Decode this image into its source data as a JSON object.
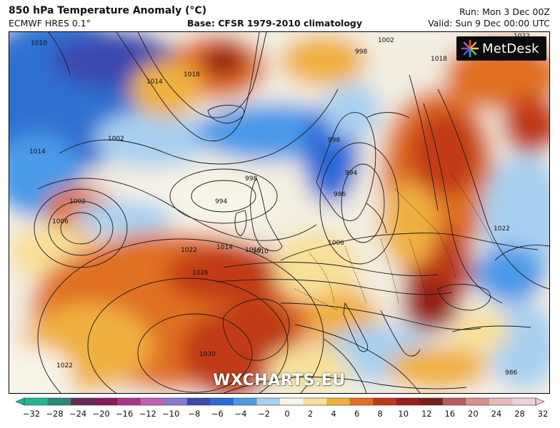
{
  "header": {
    "title": "850 hPa Temperature Anomaly (°C)",
    "model": "ECMWF HRES 0.1°",
    "base": "Base: CFSR 1979-2010 climatology",
    "run": "Run: Mon 3 Dec 00Z",
    "valid": "Valid: Sun 9 Dec 00:00 UTC"
  },
  "logo": {
    "text": "MetDesk",
    "icon": "metdesk-star-icon"
  },
  "watermark": "WXCHARTS.EU",
  "isobar_labels": [
    "1014",
    "1018",
    "1002",
    "1014",
    "1010",
    "998",
    "994",
    "1010",
    "994",
    "998",
    "986",
    "1006",
    "1006",
    "1014",
    "1010",
    "1022",
    "1026",
    "1022",
    "1022",
    "1018",
    "998",
    "1002",
    "1030",
    "1022",
    "1002",
    "986"
  ],
  "colorbar": {
    "ticks": [
      "−32",
      "−28",
      "−24",
      "−20",
      "−16",
      "−12",
      "−10",
      "−8",
      "−6",
      "−4",
      "−2",
      "0",
      "2",
      "4",
      "6",
      "8",
      "10",
      "12",
      "16",
      "20",
      "24",
      "28",
      "32"
    ],
    "colors": [
      "#1fb892",
      "#2a8a7a",
      "#6a2a55",
      "#8a1a5a",
      "#b0308a",
      "#c060b8",
      "#8a7ad0",
      "#3a4ab0",
      "#2a6ad8",
      "#4a9ae8",
      "#a8d0f0",
      "#f8f4e8",
      "#f8e098",
      "#f0b040",
      "#e07020",
      "#c03a18",
      "#982018",
      "#782018",
      "#b85a60",
      "#d89090",
      "#e8b8b8",
      "#f0d0d8"
    ]
  }
}
